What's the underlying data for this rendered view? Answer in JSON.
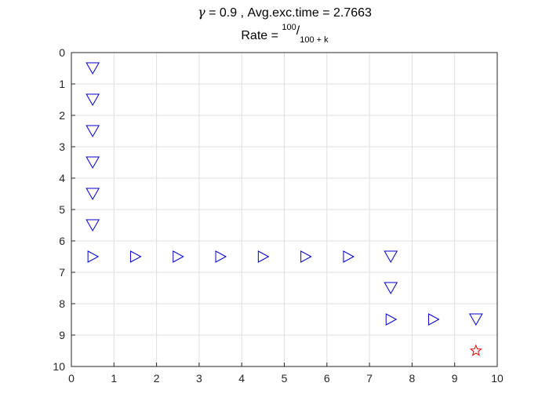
{
  "chart_data": {
    "type": "scatter",
    "title": {
      "symbol": "γ",
      "line1_rest": " = 0.9 , Avg.exc.time = 2.7663",
      "line2_prefix": "Rate = ",
      "line2_num": "100",
      "line2_slash": "/",
      "line2_den": "100 + k"
    },
    "xlim": [
      0,
      10
    ],
    "ylim": [
      0,
      10
    ],
    "y_reversed": true,
    "grid": true,
    "xticks": [
      "0",
      "1",
      "2",
      "3",
      "4",
      "5",
      "6",
      "7",
      "8",
      "9",
      "10"
    ],
    "yticks": [
      "0",
      "1",
      "2",
      "3",
      "4",
      "5",
      "6",
      "7",
      "8",
      "9",
      "10"
    ],
    "marker_color": "#0000cc",
    "goal_color": "#dd0000",
    "points": [
      {
        "x": 0.5,
        "y": 0.5,
        "marker": "triangle-down"
      },
      {
        "x": 0.5,
        "y": 1.5,
        "marker": "triangle-down"
      },
      {
        "x": 0.5,
        "y": 2.5,
        "marker": "triangle-down"
      },
      {
        "x": 0.5,
        "y": 3.5,
        "marker": "triangle-down"
      },
      {
        "x": 0.5,
        "y": 4.5,
        "marker": "triangle-down"
      },
      {
        "x": 0.5,
        "y": 5.5,
        "marker": "triangle-down"
      },
      {
        "x": 0.5,
        "y": 6.5,
        "marker": "triangle-right"
      },
      {
        "x": 1.5,
        "y": 6.5,
        "marker": "triangle-right"
      },
      {
        "x": 2.5,
        "y": 6.5,
        "marker": "triangle-right"
      },
      {
        "x": 3.5,
        "y": 6.5,
        "marker": "triangle-right"
      },
      {
        "x": 4.5,
        "y": 6.5,
        "marker": "triangle-right"
      },
      {
        "x": 5.5,
        "y": 6.5,
        "marker": "triangle-right"
      },
      {
        "x": 6.5,
        "y": 6.5,
        "marker": "triangle-right"
      },
      {
        "x": 7.5,
        "y": 6.5,
        "marker": "triangle-down"
      },
      {
        "x": 7.5,
        "y": 7.5,
        "marker": "triangle-down"
      },
      {
        "x": 7.5,
        "y": 8.5,
        "marker": "triangle-right"
      },
      {
        "x": 8.5,
        "y": 8.5,
        "marker": "triangle-right"
      },
      {
        "x": 9.5,
        "y": 8.5,
        "marker": "triangle-down"
      },
      {
        "x": 9.5,
        "y": 9.5,
        "marker": "star"
      }
    ]
  }
}
